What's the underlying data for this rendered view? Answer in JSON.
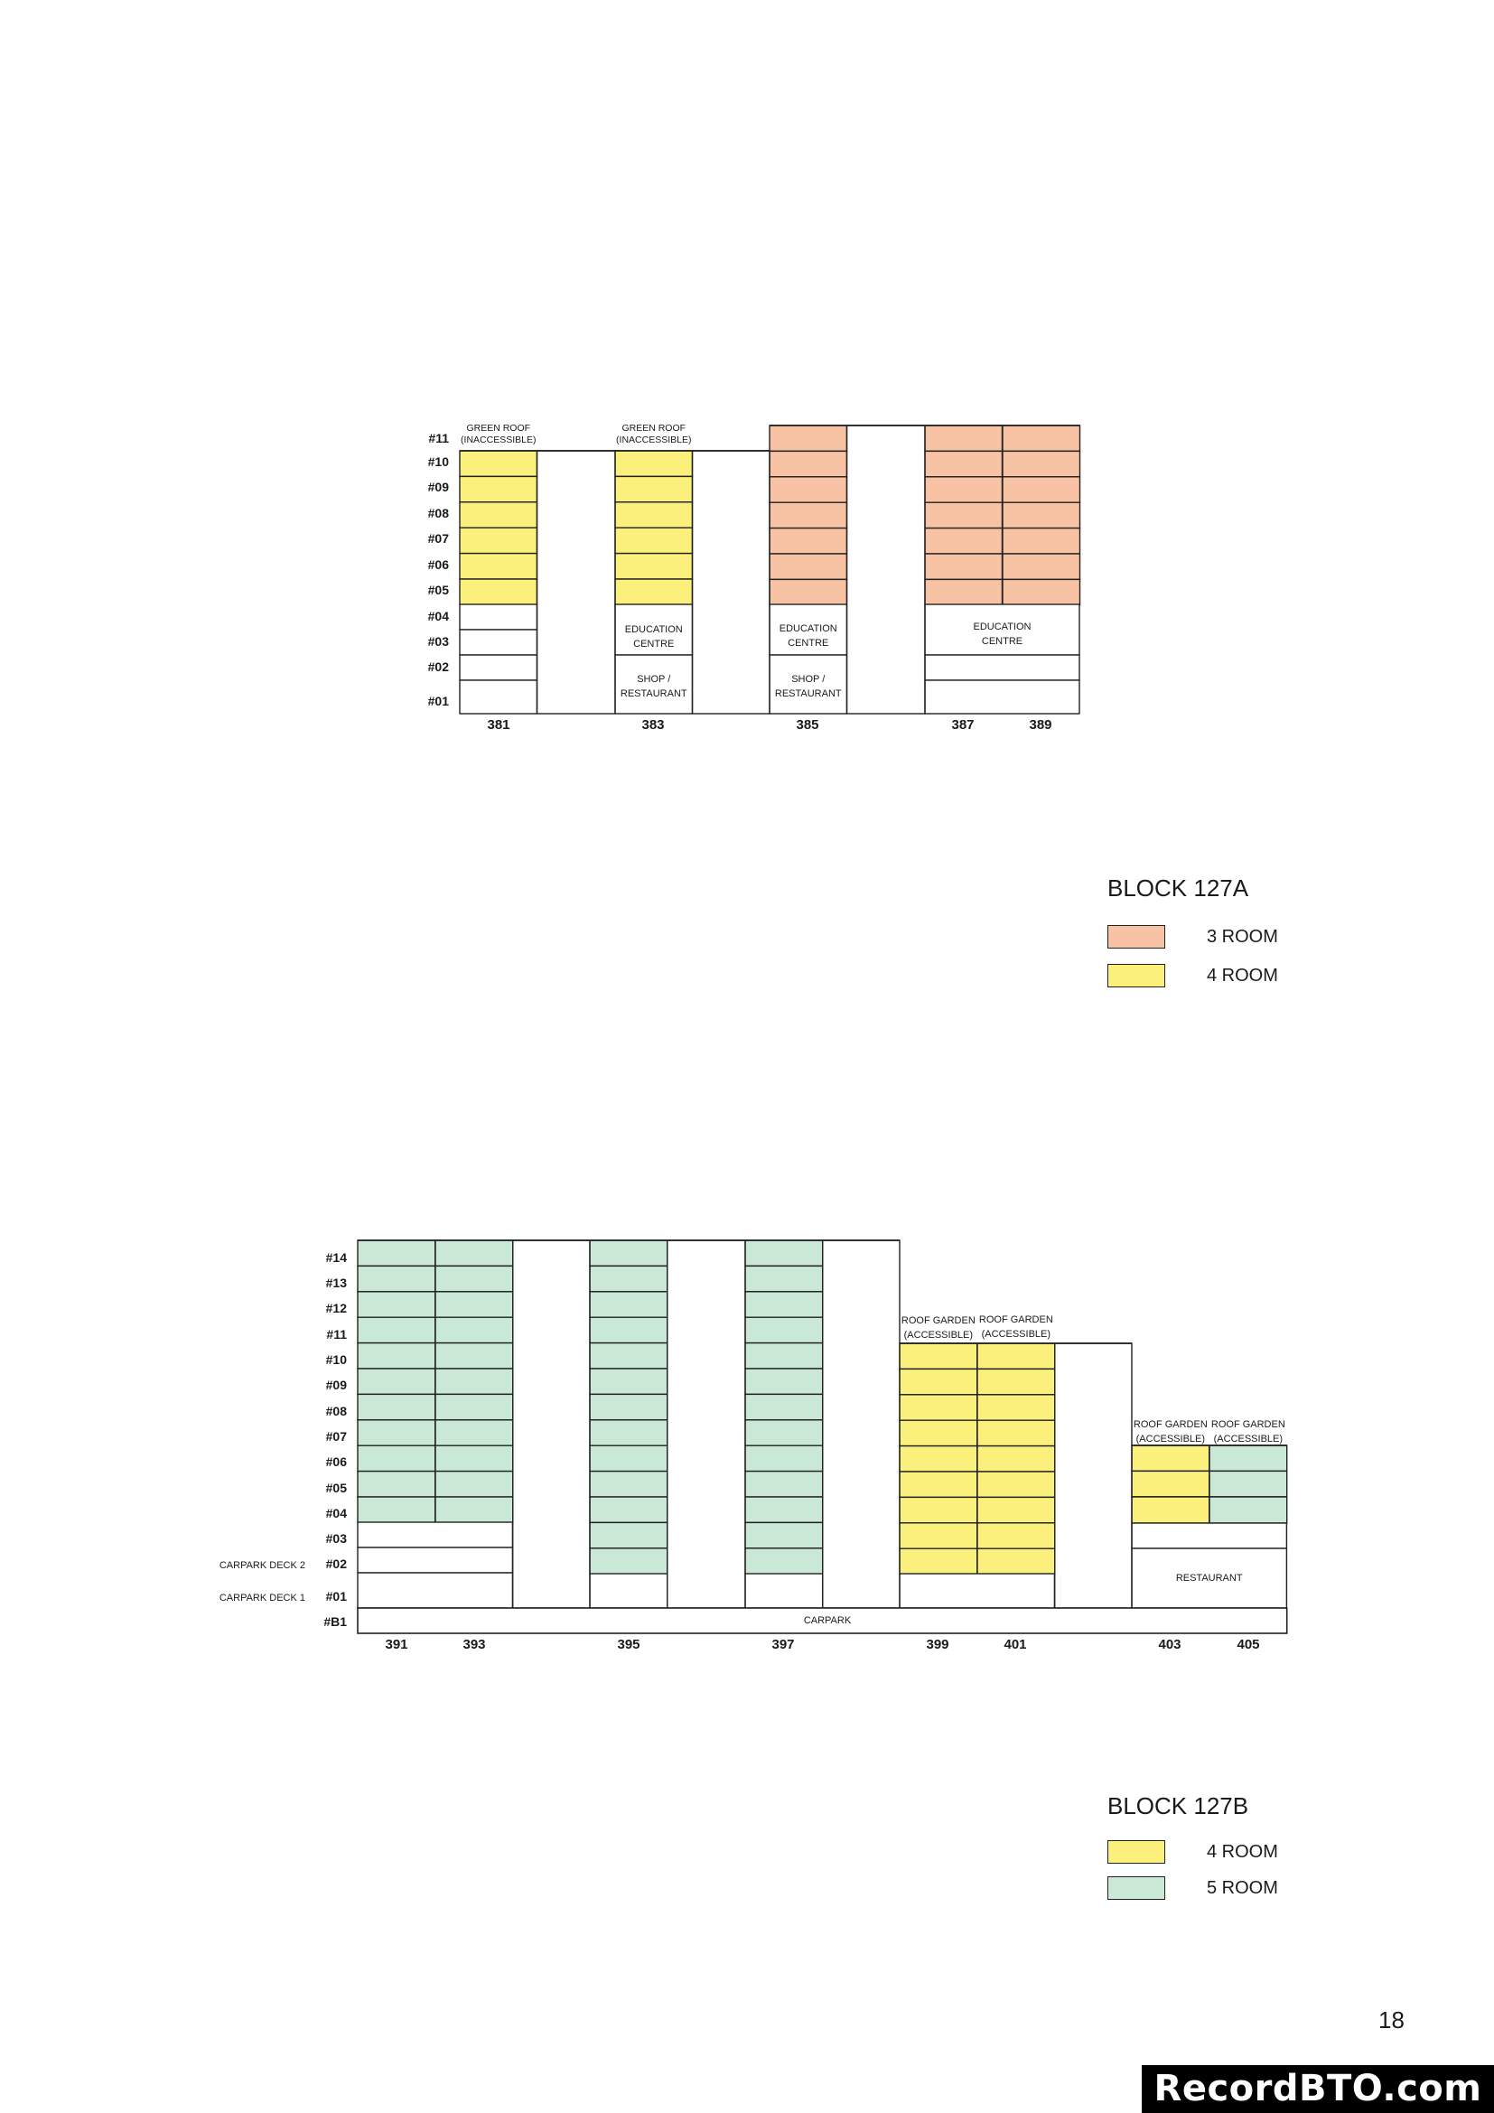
{
  "colors": {
    "three_room": "#f8c3a4",
    "four_room": "#faf07b",
    "five_room": "#c9e8d6",
    "line": "#222222",
    "text": "#1a1a1a"
  },
  "block_a": {
    "floors": [
      "#11",
      "#10",
      "#09",
      "#08",
      "#07",
      "#06",
      "#05",
      "#04",
      "#03",
      "#02",
      "#01"
    ],
    "units": [
      "381",
      "383",
      "385",
      "387",
      "389"
    ],
    "annotations": {
      "green_roof_1": [
        "GREEN ROOF",
        "(INACCESSIBLE)"
      ],
      "green_roof_2": [
        "GREEN ROOF",
        "(INACCESSIBLE)"
      ],
      "education_383": [
        "EDUCATION",
        "CENTRE"
      ],
      "shop_383": [
        "SHOP /",
        "RESTAURANT"
      ],
      "education_385": [
        "EDUCATION",
        "CENTRE"
      ],
      "shop_385": [
        "SHOP /",
        "RESTAURANT"
      ],
      "education_387": [
        "EDUCATION",
        "CENTRE"
      ]
    }
  },
  "block_b": {
    "floors": [
      "#14",
      "#13",
      "#12",
      "#11",
      "#10",
      "#09",
      "#08",
      "#07",
      "#06",
      "#05",
      "#04",
      "#03",
      "#02",
      "#01",
      "#B1"
    ],
    "side_labels": [
      "CARPARK DECK 2",
      "CARPARK DECK 1"
    ],
    "units": [
      "391",
      "393",
      "395",
      "397",
      "399",
      "401",
      "403",
      "405"
    ],
    "annotations": {
      "roof_garden_399": [
        "ROOF GARDEN",
        "(ACCESSIBLE)"
      ],
      "roof_garden_401": [
        "ROOF GARDEN",
        "(ACCESSIBLE)"
      ],
      "roof_garden_403": [
        "ROOF GARDEN",
        "(ACCESSIBLE)"
      ],
      "roof_garden_405": [
        "ROOF GARDEN",
        "(ACCESSIBLE)"
      ],
      "restaurant": "RESTAURANT",
      "carpark": "CARPARK"
    }
  },
  "legend_a": {
    "title": "BLOCK 127A",
    "items": [
      {
        "label": "3 ROOM",
        "color": "#f8c3a4"
      },
      {
        "label": "4 ROOM",
        "color": "#faf07b"
      }
    ]
  },
  "legend_b": {
    "title": "BLOCK 127B",
    "items": [
      {
        "label": "4 ROOM",
        "color": "#faf07b"
      },
      {
        "label": "5 ROOM",
        "color": "#c9e8d6"
      }
    ]
  },
  "page_number": "18",
  "watermark": "RecordBTO.com"
}
